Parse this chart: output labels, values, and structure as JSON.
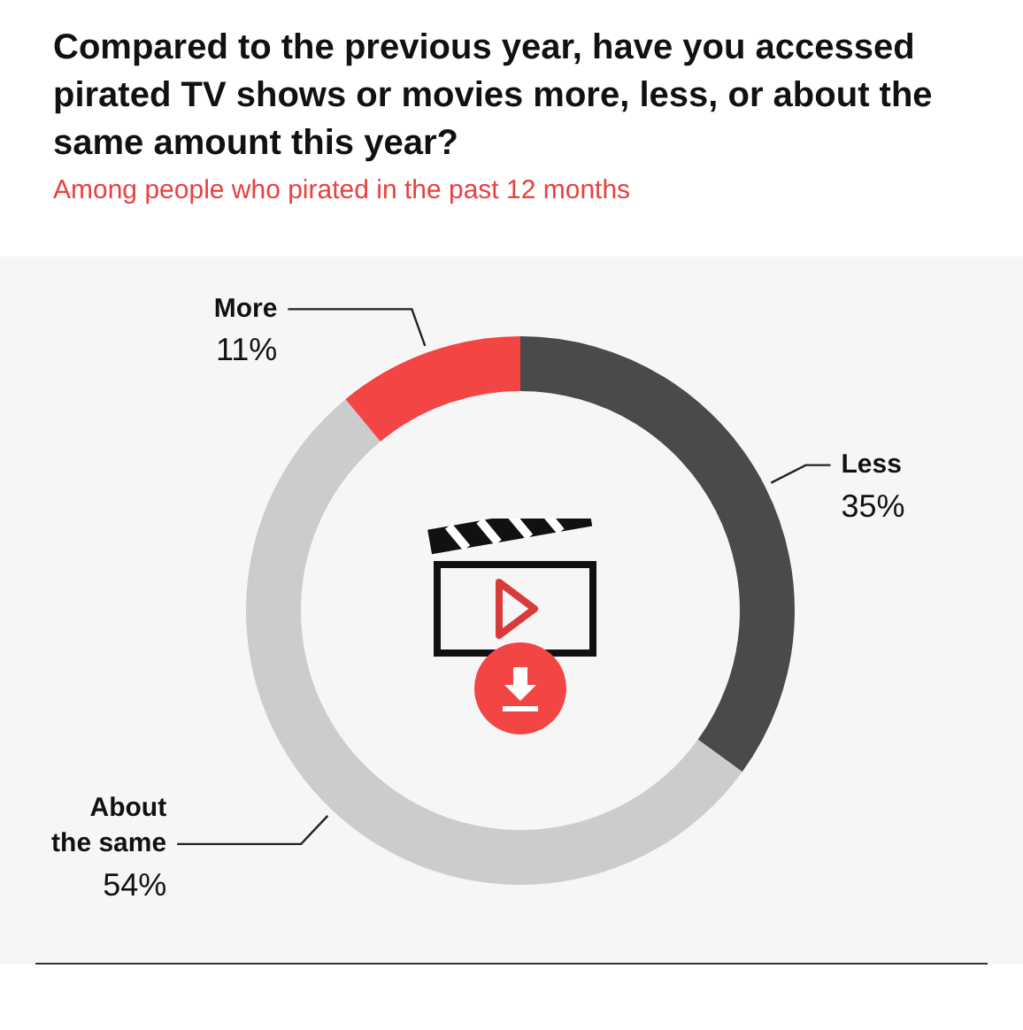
{
  "chart_data": {
    "type": "donut",
    "title": "Compared to the previous year, have you accessed pirated TV shows or movies more, less, or about the same amount this year?",
    "subtitle": "Among people who pirated in the past 12 months",
    "categories": [
      "Less",
      "About the same",
      "More"
    ],
    "values": [
      35,
      54,
      11
    ],
    "colors": [
      "#4a4a4a",
      "#cccccc",
      "#f44545"
    ],
    "value_labels": [
      "35%",
      "54%",
      "11%"
    ],
    "legend": false
  }
}
